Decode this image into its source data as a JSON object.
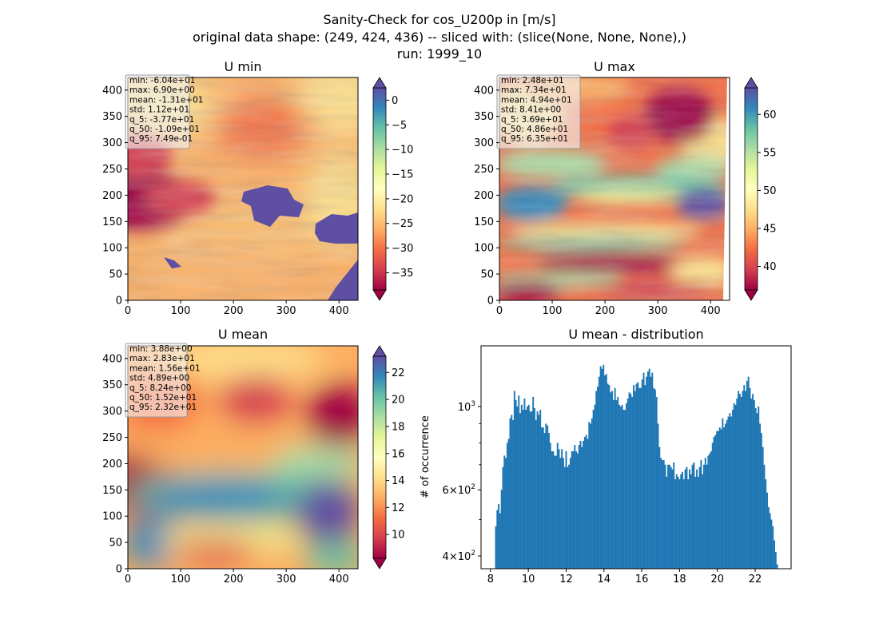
{
  "suptitle": {
    "line1": "Sanity-Check for cos_U200p in [m/s]",
    "line2": "original data shape: (249, 424, 436) -- sliced with: (slice(None, None, None),)",
    "line3": "run: 1999_10"
  },
  "chart_data": [
    {
      "type": "heatmap",
      "title": "U min",
      "colormap": "Spectral",
      "xlim": [
        0,
        436
      ],
      "ylim": [
        0,
        424
      ],
      "xticks": [
        0,
        100,
        200,
        300,
        400
      ],
      "yticks": [
        0,
        50,
        100,
        150,
        200,
        250,
        300,
        350,
        400
      ],
      "colorbar": {
        "vmin": -38.5,
        "vmax": 2.5,
        "ticks": [
          0,
          -5,
          -10,
          -15,
          -20,
          -25,
          -30,
          -35
        ],
        "tick_labels": [
          "0",
          "−5",
          "−10",
          "−15",
          "−20",
          "−25",
          "−30",
          "−35"
        ]
      },
      "stats": [
        "min: -6.04e+01",
        "max: 6.90e+00",
        "mean: -1.31e+01",
        "std: 1.12e+01",
        "q_5: -3.77e+01",
        "q_50: -1.09e+01",
        "q_95: 7.49e-01"
      ]
    },
    {
      "type": "heatmap",
      "title": "U max",
      "colormap": "Spectral",
      "xlim": [
        0,
        436
      ],
      "ylim": [
        0,
        424
      ],
      "xticks": [
        0,
        100,
        200,
        300,
        400
      ],
      "yticks": [
        0,
        50,
        100,
        150,
        200,
        250,
        300,
        350,
        400
      ],
      "colorbar": {
        "vmin": 36.9,
        "vmax": 63.5,
        "ticks": [
          40,
          45,
          50,
          55,
          60
        ],
        "tick_labels": [
          "40",
          "45",
          "50",
          "55",
          "60"
        ]
      },
      "stats": [
        "min: 2.48e+01",
        "max: 7.34e+01",
        "mean: 4.94e+01",
        "std: 8.41e+00",
        "q_5: 3.69e+01",
        "q_50: 4.86e+01",
        "q_95: 6.35e+01"
      ]
    },
    {
      "type": "heatmap",
      "title": "U mean",
      "colormap": "Spectral",
      "xlim": [
        0,
        436
      ],
      "ylim": [
        0,
        424
      ],
      "xticks": [
        0,
        100,
        200,
        300,
        400
      ],
      "yticks": [
        0,
        50,
        100,
        150,
        200,
        250,
        300,
        350,
        400
      ],
      "colorbar": {
        "vmin": 8.24,
        "vmax": 23.2,
        "ticks": [
          10,
          12,
          14,
          16,
          18,
          20,
          22
        ],
        "tick_labels": [
          "10",
          "12",
          "14",
          "16",
          "18",
          "20",
          "22"
        ]
      },
      "stats": [
        "min: 3.88e+00",
        "max: 2.83e+01",
        "mean: 1.56e+01",
        "std: 4.89e+00",
        "q_5: 8.24e+00",
        "q_50: 1.52e+01",
        "q_95: 2.32e+01"
      ]
    },
    {
      "type": "bar",
      "title": "U mean - distribution",
      "ylabel": "# of occurrence",
      "xlabel": "",
      "yscale": "log",
      "color": "#1f77b4",
      "xlim": [
        7.5,
        23.9
      ],
      "ylim": [
        370,
        1450
      ],
      "xticks": [
        8,
        10,
        12,
        14,
        16,
        18,
        20,
        22
      ],
      "ytick_major": [
        {
          "value": 400,
          "base": "4×10",
          "exp": "2"
        },
        {
          "value": 600,
          "base": "6×10",
          "exp": "2"
        },
        {
          "value": 1000,
          "base": "10",
          "exp": "3"
        }
      ],
      "ytick_minor": [
        500,
        700,
        800,
        900
      ],
      "bins": {
        "start": 8.24,
        "end": 23.2
      },
      "counts": [
        480,
        530,
        550,
        520,
        600,
        690,
        740,
        730,
        800,
        820,
        930,
        950,
        920,
        1100,
        1040,
        1000,
        1070,
        960,
        1010,
        980,
        1050,
        980,
        1000,
        1010,
        970,
        970,
        1060,
        990,
        920,
        970,
        950,
        980,
        880,
        880,
        850,
        900,
        890,
        850,
        800,
        760,
        760,
        740,
        740,
        800,
        770,
        730,
        770,
        730,
        690,
        760,
        690,
        700,
        730,
        760,
        760,
        790,
        760,
        750,
        790,
        810,
        780,
        810,
        830,
        840,
        820,
        910,
        900,
        930,
        980,
        1010,
        1100,
        1130,
        1200,
        1280,
        1260,
        1290,
        1210,
        1220,
        1150,
        1140,
        1090,
        1100,
        1040,
        1120,
        1040,
        1060,
        1010,
        1000,
        1010,
        980,
        980,
        1020,
        1050,
        1090,
        1080,
        1060,
        1140,
        1100,
        1150,
        1160,
        1120,
        1120,
        1180,
        1230,
        1140,
        1200,
        1240,
        1260,
        1200,
        1230,
        1120,
        1110,
        1060,
        900,
        780,
        730,
        720,
        720,
        700,
        650,
        700,
        700,
        690,
        680,
        710,
        640,
        660,
        650,
        640,
        660,
        670,
        640,
        680,
        690,
        640,
        680,
        660,
        700,
        710,
        650,
        680,
        650,
        690,
        720,
        660,
        700,
        730,
        700,
        740,
        750,
        760,
        800,
        830,
        840,
        860,
        860,
        880,
        870,
        930,
        880,
        900,
        920,
        940,
        960,
        940,
        980,
        1020,
        1010,
        1050,
        1100,
        1080,
        1060,
        1100,
        1140,
        1100,
        1170,
        1200,
        1120,
        1050,
        1080,
        1040,
        990,
        960,
        1000,
        900,
        850,
        780,
        700,
        640,
        590,
        540,
        520,
        500,
        480,
        440,
        410,
        380
      ]
    }
  ]
}
